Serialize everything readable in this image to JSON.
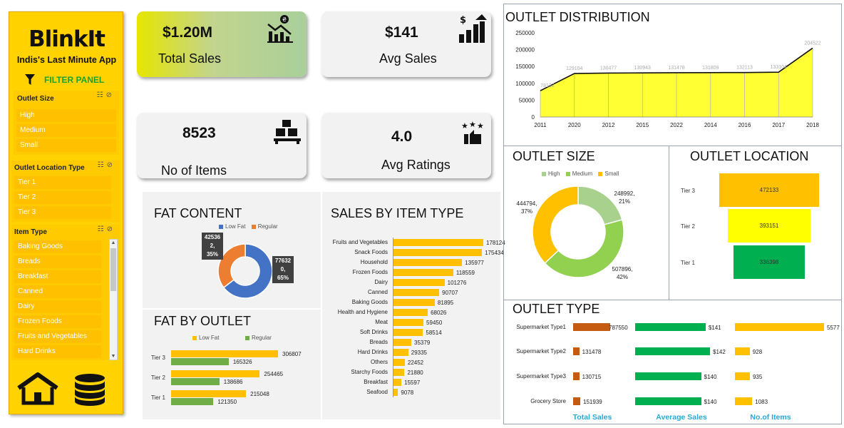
{
  "app": {
    "logo": "BlinkIt",
    "tagline": "Indis's Last Minute App"
  },
  "filter_panel": {
    "label": "FILTER PANEL",
    "icon": "filter-icon"
  },
  "slicers": {
    "outlet_size": {
      "title": "Outlet Size",
      "items": [
        "High",
        "Medium",
        "Small"
      ]
    },
    "outlet_location_type": {
      "title": "Outlet Location Type",
      "items": [
        "Tier 1",
        "Tier 2",
        "Tier 3"
      ]
    },
    "item_type": {
      "title": "Item Type",
      "items": [
        "Baking Goods",
        "Breads",
        "Breakfast",
        "Canned",
        "Dairy",
        "Frozen Foods",
        "Fruits and Vegetables",
        "Hard Drinks"
      ]
    }
  },
  "nav": {
    "home_icon": "home-icon",
    "data_icon": "database-icon"
  },
  "kpis": {
    "total_sales": {
      "value": "$1.20M",
      "label": "Total Sales",
      "icon": "sales-chart-icon"
    },
    "avg_sales": {
      "value": "$141",
      "label": "Avg Sales",
      "icon": "growth-chart-icon"
    },
    "no_of_items": {
      "value": "8523",
      "label": "No of Items",
      "icon": "boxes-icon"
    },
    "avg_ratings": {
      "value": "4.0",
      "label": "Avg Ratings",
      "icon": "rating-stars-icon"
    }
  },
  "colors": {
    "yellow": "#ffd200",
    "gold": "#ffc000",
    "green": "#00b050",
    "lightgreen": "#92d050",
    "blue": "#4472c4",
    "orange": "#ed7d31",
    "brown": "#c55a11",
    "accent_text": "#29a7d6"
  },
  "chart_data": [
    {
      "id": "outlet_distribution",
      "type": "area",
      "title": "OUTLET DISTRIBUTION",
      "categories": [
        "2011",
        "2020",
        "2012",
        "2015",
        "2022",
        "2014",
        "2016",
        "2017",
        "2018"
      ],
      "values": [
        78132,
        129104,
        130477,
        130943,
        131478,
        131809,
        132113,
        133104,
        204522
      ],
      "y_ticks": [
        "0",
        "50000",
        "100000",
        "150000",
        "200000",
        "250000"
      ],
      "ylim": [
        0,
        250000
      ],
      "grid": true,
      "color": "#ffff33"
    },
    {
      "id": "outlet_size",
      "type": "pie",
      "title": "OUTLET SIZE",
      "legend": [
        "High",
        "Medium",
        "Small"
      ],
      "legend_position": "top",
      "values": [
        248992,
        507896,
        444794
      ],
      "labels_value": [
        "248992,",
        "507896,",
        "444794,"
      ],
      "labels_pct": [
        "21%",
        "42%",
        "37%"
      ],
      "colors": [
        "#a9d18e",
        "#92d050",
        "#ffc000"
      ]
    },
    {
      "id": "outlet_location",
      "type": "bar",
      "title": "OUTLET LOCATION",
      "categories": [
        "Tier 3",
        "Tier 2",
        "Tier 1"
      ],
      "values": [
        472133,
        393151,
        336398
      ],
      "value_labels": [
        "472133",
        "393151",
        "336398"
      ],
      "colors": [
        "#ffc000",
        "#ffff00",
        "#00b050"
      ]
    },
    {
      "id": "fat_content",
      "type": "pie",
      "title": "FAT CONTENT",
      "legend": [
        "Low Fat",
        "Regular"
      ],
      "legend_position": "top",
      "values": [
        776320,
        425362
      ],
      "callout_low_fat": [
        "77632",
        "0,",
        "65%"
      ],
      "callout_regular": [
        "42536",
        "2,",
        "35%"
      ],
      "colors": [
        "#4472c4",
        "#ed7d31"
      ]
    },
    {
      "id": "fat_by_outlet",
      "type": "bar",
      "title": "FAT BY OUTLET",
      "legend": [
        "Low Fat",
        "Regular"
      ],
      "categories": [
        "Tier 3",
        "Tier 2",
        "Tier 1"
      ],
      "series": [
        {
          "name": "Low Fat",
          "values": [
            306807,
            254465,
            215048
          ],
          "labels": [
            "306807",
            "254465",
            "215048"
          ],
          "color": "#ffc000"
        },
        {
          "name": "Regular",
          "values": [
            165326,
            138686,
            121350
          ],
          "labels": [
            "165326",
            "138686",
            "121350"
          ],
          "color": "#70ad47"
        }
      ]
    },
    {
      "id": "sales_by_item_type",
      "type": "bar",
      "title": "SALES BY ITEM TYPE",
      "categories": [
        "Fruits and Vegetables",
        "Snack Foods",
        "Household",
        "Frozen Foods",
        "Dairy",
        "Canned",
        "Baking Goods",
        "Health and Hygiene",
        "Meat",
        "Soft Drinks",
        "Breads",
        "Hard Drinks",
        "Others",
        "Starchy Foods",
        "Breakfast",
        "Seafood"
      ],
      "values": [
        178124,
        175434,
        135977,
        118559,
        101276,
        90707,
        81895,
        68026,
        59450,
        58514,
        35379,
        29335,
        22452,
        21880,
        15597,
        9078
      ],
      "value_labels": [
        "178124",
        "175434",
        "135977",
        "118559",
        "101276",
        "90707",
        "81895",
        "68026",
        "59450",
        "58514",
        "35379",
        "29335",
        "22452",
        "21880",
        "15597",
        "9078"
      ],
      "color": "#ffc000"
    },
    {
      "id": "outlet_type",
      "type": "table",
      "title": "OUTLET TYPE",
      "rows": [
        "Supermarket Type1",
        "Supermarket Type2",
        "Supermarket Type3",
        "Grocery Store"
      ],
      "columns": [
        {
          "header": "Total Sales",
          "values": [
            787550,
            131478,
            130715,
            151939
          ],
          "labels": [
            "787550",
            "131478",
            "130715",
            "151939"
          ],
          "color": "#c55a11"
        },
        {
          "header": "Average Sales",
          "values": [
            141,
            142,
            140,
            140
          ],
          "labels": [
            "$141",
            "$142",
            "$140",
            "$140"
          ],
          "color": "#00b050"
        },
        {
          "header": "No.of Items",
          "values": [
            5577,
            928,
            935,
            1083
          ],
          "labels": [
            "5577",
            "928",
            "935",
            "1083"
          ],
          "color": "#ffc000"
        }
      ]
    }
  ]
}
